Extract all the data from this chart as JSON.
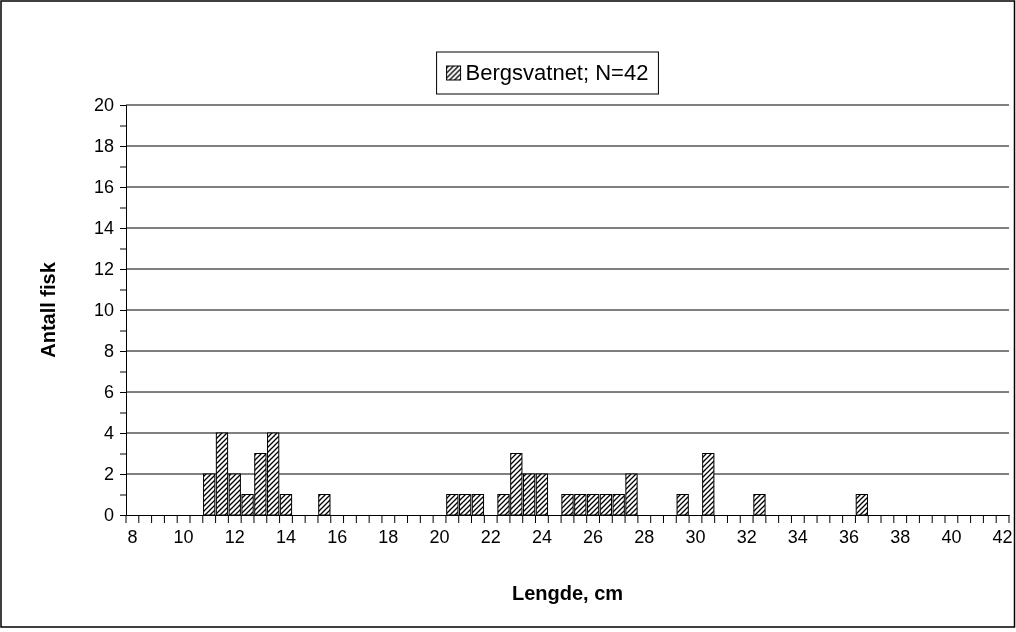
{
  "chart_data": {
    "type": "bar",
    "xlabel": "Lengde, cm",
    "ylabel": "Antall fisk",
    "categories": [
      "8",
      null,
      null,
      null,
      "10",
      null,
      null,
      null,
      "12",
      null,
      null,
      null,
      "14",
      null,
      null,
      null,
      "16",
      null,
      null,
      null,
      "18",
      null,
      null,
      null,
      "20",
      null,
      null,
      null,
      "22",
      null,
      null,
      null,
      "24",
      null,
      null,
      null,
      "26",
      null,
      null,
      null,
      "28",
      null,
      null,
      null,
      "30",
      null,
      null,
      null,
      "32",
      null,
      null,
      null,
      "34",
      null,
      null,
      null,
      "36",
      null,
      null,
      null,
      "38",
      null,
      null,
      null,
      "40",
      null,
      null,
      null,
      "42"
    ],
    "series": [
      {
        "name": "Bergsvatnet; N=42",
        "color": "#000000",
        "values": [
          0,
          0,
          0,
          0,
          0,
          0,
          2,
          4,
          2,
          1,
          3,
          4,
          1,
          0,
          0,
          1,
          0,
          0,
          0,
          0,
          0,
          0,
          0,
          0,
          0,
          1,
          1,
          1,
          0,
          1,
          3,
          2,
          2,
          0,
          1,
          1,
          1,
          1,
          1,
          2,
          0,
          0,
          0,
          1,
          0,
          3,
          0,
          0,
          0,
          1,
          0,
          0,
          0,
          0,
          0,
          0,
          0,
          1,
          0,
          0,
          0,
          0,
          0,
          0,
          0,
          0,
          0,
          0,
          0
        ]
      }
    ],
    "ylim": [
      0,
      20
    ],
    "yticks": [
      0,
      {
        "value": 1,
        "label": null
      },
      2,
      {
        "value": 3,
        "label": null
      },
      4,
      {
        "value": 5,
        "label": null
      },
      6,
      {
        "value": 7,
        "label": null
      },
      8,
      {
        "value": 9,
        "label": null
      },
      10,
      {
        "value": 11,
        "label": null
      },
      12,
      {
        "value": 13,
        "label": null
      },
      14,
      {
        "value": 15,
        "label": null
      },
      16,
      {
        "value": 17,
        "label": null
      },
      18,
      {
        "value": 19,
        "label": null
      },
      20
    ],
    "grid": "y",
    "legend": "top"
  }
}
